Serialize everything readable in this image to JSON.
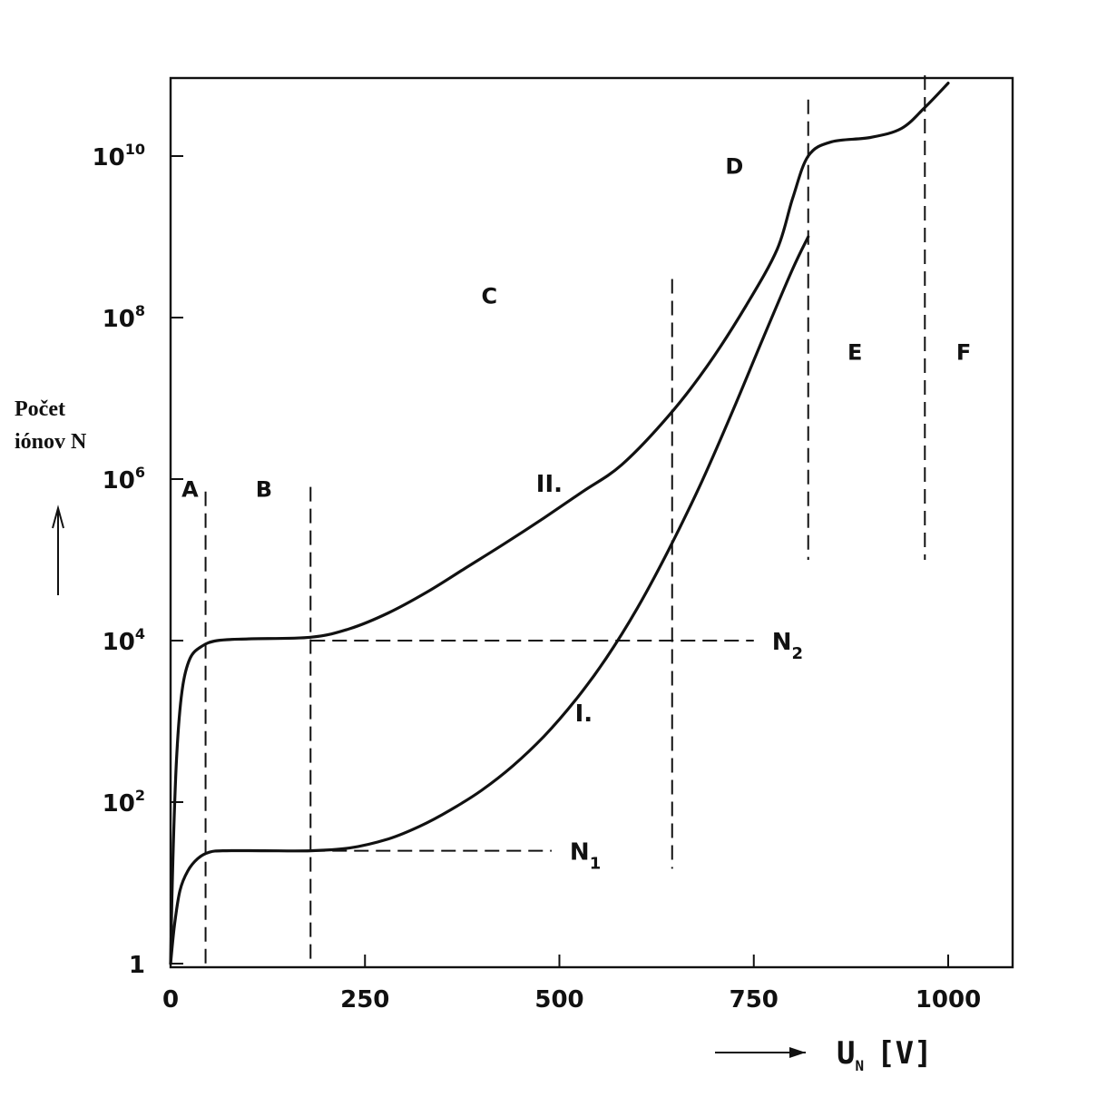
{
  "chart_data": {
    "type": "line",
    "ylabel_lines": [
      "Počet",
      "iónov N"
    ],
    "xlabel": {
      "main": "U",
      "sub": "N",
      "unit": "[V]"
    },
    "x_scale": "linear",
    "y_scale": "log",
    "xlim": [
      0,
      1080
    ],
    "ylim": [
      1,
      100000000000.0
    ],
    "x_ticks": [
      {
        "value": 0,
        "label": "0"
      },
      {
        "value": 250,
        "label": "250"
      },
      {
        "value": 500,
        "label": "500"
      },
      {
        "value": 750,
        "label": "750"
      },
      {
        "value": 1000,
        "label": "1000"
      }
    ],
    "y_ticks": [
      {
        "value": 1,
        "base": "1",
        "exp": ""
      },
      {
        "value": 100,
        "base": "10",
        "exp": "2"
      },
      {
        "value": 10000,
        "base": "10",
        "exp": "4"
      },
      {
        "value": 1000000,
        "base": "10",
        "exp": "6"
      },
      {
        "value": 100000000,
        "base": "10",
        "exp": "8"
      },
      {
        "value": 10000000000,
        "base": "10",
        "exp": "10"
      }
    ],
    "region_labels": [
      {
        "label": "A",
        "x": 25,
        "y": 600000
      },
      {
        "label": "B",
        "x": 120,
        "y": 600000
      },
      {
        "label": "C",
        "x": 410,
        "y": 150000000
      },
      {
        "label": "D",
        "x": 725,
        "y": 6000000000
      },
      {
        "label": "E",
        "x": 880,
        "y": 30000000
      },
      {
        "label": "F",
        "x": 1020,
        "y": 30000000
      }
    ],
    "boundaries": [
      {
        "x": 45,
        "ymin": 1,
        "ymax": 700000
      },
      {
        "x": 180,
        "ymin": 1,
        "ymax": 800000
      },
      {
        "x": 645,
        "ymin": 15,
        "ymax": 300000000
      },
      {
        "x": 820,
        "ymin": 100000,
        "ymax": 50000000000
      },
      {
        "x": 970,
        "ymin": 100000,
        "ymax": 100000000000
      }
    ],
    "reference_lines": [
      {
        "label": "N",
        "sub": "1",
        "y": 25,
        "x_start": 180,
        "x_end": 490
      },
      {
        "label": "N",
        "sub": "2",
        "y": 10000,
        "x_start": 180,
        "x_end": 750
      }
    ],
    "series": [
      {
        "name": "I.",
        "label_at": {
          "x": 520,
          "y": 1000
        },
        "points": [
          [
            0,
            1
          ],
          [
            5,
            3
          ],
          [
            12,
            8
          ],
          [
            22,
            14
          ],
          [
            35,
            20
          ],
          [
            50,
            24
          ],
          [
            70,
            25
          ],
          [
            120,
            25
          ],
          [
            180,
            25
          ],
          [
            230,
            27
          ],
          [
            280,
            35
          ],
          [
            320,
            50
          ],
          [
            360,
            80
          ],
          [
            400,
            140
          ],
          [
            440,
            280
          ],
          [
            480,
            650
          ],
          [
            520,
            1800
          ],
          [
            560,
            6000
          ],
          [
            600,
            25000
          ],
          [
            640,
            130000
          ],
          [
            680,
            800000
          ],
          [
            720,
            6000000
          ],
          [
            760,
            50000000
          ],
          [
            800,
            400000000
          ],
          [
            820,
            1000000000
          ]
        ]
      },
      {
        "name": "II.",
        "label_at": {
          "x": 470,
          "y": 700000
        },
        "points": [
          [
            0,
            1
          ],
          [
            3,
            20
          ],
          [
            8,
            400
          ],
          [
            15,
            2500
          ],
          [
            25,
            6000
          ],
          [
            40,
            8500
          ],
          [
            60,
            10000
          ],
          [
            100,
            10500
          ],
          [
            180,
            11000
          ],
          [
            230,
            14000
          ],
          [
            280,
            22000
          ],
          [
            330,
            40000
          ],
          [
            380,
            80000
          ],
          [
            430,
            160000
          ],
          [
            480,
            330000
          ],
          [
            530,
            700000
          ],
          [
            580,
            1500000
          ],
          [
            640,
            6000000
          ],
          [
            690,
            25000000
          ],
          [
            740,
            140000000
          ],
          [
            780,
            700000000
          ],
          [
            800,
            3000000000
          ],
          [
            820,
            10000000000
          ],
          [
            850,
            15000000000
          ],
          [
            900,
            17000000000
          ],
          [
            940,
            22000000000
          ],
          [
            970,
            40000000000
          ],
          [
            1000,
            80000000000
          ]
        ]
      }
    ],
    "colors": {
      "ink": "#111111",
      "background": "#ffffff"
    }
  }
}
